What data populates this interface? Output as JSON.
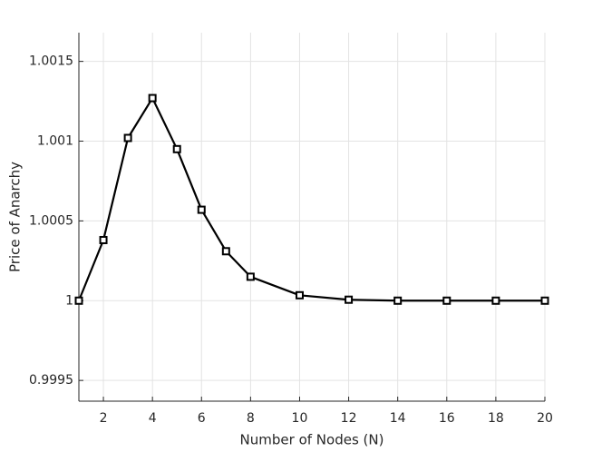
{
  "chart_data": {
    "type": "line",
    "x_label": "Number of Nodes (N)",
    "y_label": "Price of Anarchy",
    "x": [
      1,
      2,
      3,
      4,
      5,
      6,
      7,
      8,
      10,
      12,
      14,
      16,
      18,
      20
    ],
    "series": [
      {
        "name": "Price of Anarchy",
        "color": "#000000",
        "values": [
          1.0,
          1.00038,
          1.00102,
          1.00127,
          1.00095,
          1.00057,
          1.00031,
          1.00015,
          1.000034,
          1.000006,
          1.0,
          1.0,
          1.0,
          1.0
        ]
      }
    ],
    "xlim": [
      1,
      20
    ],
    "xticks": [
      2,
      4,
      6,
      8,
      10,
      12,
      14,
      16,
      18,
      20
    ],
    "ylim": [
      0.99937,
      1.00168
    ],
    "yticks": [
      0.9995,
      1,
      1.0005,
      1.001,
      1.0015
    ],
    "grid": true
  }
}
